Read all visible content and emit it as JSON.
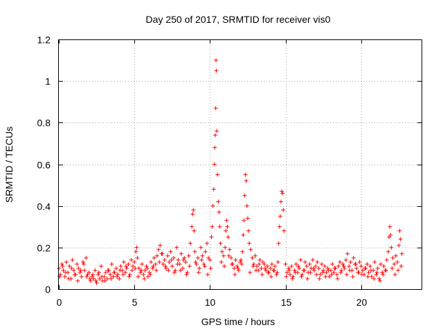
{
  "chart_data": {
    "type": "scatter",
    "title": "Day 250 of 2017, SRMTID for receiver vis0",
    "xlabel": "GPS time / hours",
    "ylabel": "SRMTID / TECUs",
    "xlim": [
      0,
      24
    ],
    "ylim": [
      0,
      1.2
    ],
    "xticks": [
      0,
      5,
      10,
      15,
      20
    ],
    "yticks": [
      0,
      0.2,
      0.4,
      0.6,
      0.8,
      1,
      1.2
    ],
    "xtick_labels": [
      "0",
      "5",
      "10",
      "15",
      "20"
    ],
    "ytick_labels": [
      "0",
      "0.2",
      "0.4",
      "0.6",
      "0.8",
      "1",
      "1.2"
    ],
    "grid": true,
    "marker": "+",
    "color": "#ff0000",
    "series": [
      {
        "name": "SRMTID vis0",
        "x": [
          0.0,
          0.1,
          0.2,
          0.3,
          0.4,
          0.5,
          0.6,
          0.7,
          0.8,
          0.9,
          1.0,
          1.1,
          1.2,
          1.3,
          1.4,
          1.5,
          1.6,
          1.7,
          1.8,
          1.9,
          2.0,
          2.1,
          2.2,
          2.3,
          2.4,
          2.5,
          2.6,
          2.7,
          2.8,
          2.9,
          3.0,
          3.1,
          3.2,
          3.3,
          3.4,
          3.5,
          3.6,
          3.7,
          3.8,
          3.9,
          4.0,
          4.1,
          4.2,
          4.3,
          4.4,
          4.5,
          4.6,
          4.7,
          4.8,
          4.9,
          5.0,
          5.1,
          5.15,
          5.2,
          5.3,
          5.4,
          5.5,
          5.6,
          5.7,
          5.8,
          5.9,
          6.0,
          6.1,
          6.2,
          6.3,
          6.4,
          6.5,
          6.6,
          6.7,
          6.8,
          6.9,
          7.0,
          7.1,
          7.2,
          7.3,
          7.4,
          7.5,
          7.6,
          7.7,
          7.8,
          7.9,
          8.0,
          8.1,
          8.2,
          8.3,
          8.4,
          8.5,
          8.6,
          8.7,
          8.8,
          8.85,
          8.9,
          8.95,
          9.0,
          9.1,
          9.2,
          9.3,
          9.4,
          9.5,
          9.6,
          9.7,
          9.8,
          9.9,
          10.0,
          10.1,
          10.15,
          10.2,
          10.25,
          10.3,
          10.32,
          10.35,
          10.38,
          10.4,
          10.42,
          10.45,
          10.5,
          10.55,
          10.6,
          10.65,
          10.7,
          10.8,
          10.9,
          11.0,
          11.05,
          11.1,
          11.15,
          11.2,
          11.3,
          11.4,
          11.5,
          11.6,
          11.7,
          11.8,
          11.9,
          12.0,
          12.1,
          12.15,
          12.2,
          12.25,
          12.3,
          12.35,
          12.4,
          12.45,
          12.5,
          12.55,
          12.6,
          12.7,
          12.8,
          12.9,
          13.0,
          13.1,
          13.2,
          13.3,
          13.4,
          13.5,
          13.6,
          13.7,
          13.8,
          13.9,
          14.0,
          14.1,
          14.2,
          14.3,
          14.4,
          14.5,
          14.55,
          14.6,
          14.65,
          14.7,
          14.75,
          14.8,
          14.85,
          14.9,
          15.0,
          15.1,
          15.2,
          15.3,
          15.4,
          15.5,
          15.6,
          15.7,
          15.8,
          15.9,
          16.0,
          16.1,
          16.2,
          16.3,
          16.4,
          16.5,
          16.6,
          16.7,
          16.8,
          16.9,
          17.0,
          17.1,
          17.2,
          17.3,
          17.4,
          17.5,
          17.6,
          17.7,
          17.8,
          17.9,
          18.0,
          18.1,
          18.2,
          18.3,
          18.4,
          18.5,
          18.6,
          18.7,
          18.8,
          18.9,
          19.0,
          19.1,
          19.2,
          19.3,
          19.4,
          19.5,
          19.6,
          19.7,
          19.8,
          19.9,
          20.0,
          20.1,
          20.2,
          20.3,
          20.4,
          20.5,
          20.6,
          20.7,
          20.8,
          20.9,
          21.0,
          21.1,
          21.2,
          21.3,
          21.4,
          21.5,
          21.6,
          21.7,
          21.8,
          21.85,
          21.9,
          21.95,
          22.0,
          22.1,
          22.2,
          22.3,
          22.4,
          22.5,
          22.55,
          22.6,
          22.7
        ],
        "y": [
          0.1,
          0.07,
          0.12,
          0.09,
          0.06,
          0.13,
          0.08,
          0.11,
          0.05,
          0.14,
          0.09,
          0.07,
          0.12,
          0.1,
          0.08,
          0.06,
          0.13,
          0.09,
          0.15,
          0.07,
          0.08,
          0.04,
          0.06,
          0.05,
          0.09,
          0.03,
          0.07,
          0.05,
          0.11,
          0.04,
          0.06,
          0.08,
          0.05,
          0.09,
          0.07,
          0.12,
          0.06,
          0.08,
          0.1,
          0.07,
          0.05,
          0.11,
          0.09,
          0.13,
          0.08,
          0.1,
          0.12,
          0.07,
          0.14,
          0.11,
          0.13,
          0.18,
          0.2,
          0.15,
          0.1,
          0.08,
          0.12,
          0.07,
          0.09,
          0.11,
          0.06,
          0.08,
          0.13,
          0.1,
          0.15,
          0.12,
          0.16,
          0.19,
          0.21,
          0.17,
          0.12,
          0.14,
          0.1,
          0.16,
          0.13,
          0.18,
          0.11,
          0.15,
          0.09,
          0.2,
          0.14,
          0.12,
          0.17,
          0.1,
          0.15,
          0.13,
          0.08,
          0.16,
          0.22,
          0.3,
          0.36,
          0.38,
          0.28,
          0.18,
          0.12,
          0.15,
          0.1,
          0.2,
          0.16,
          0.12,
          0.18,
          0.22,
          0.15,
          0.14,
          0.25,
          0.3,
          0.4,
          0.48,
          0.6,
          0.68,
          0.74,
          0.87,
          1.1,
          1.05,
          0.76,
          0.55,
          0.42,
          0.37,
          0.3,
          0.22,
          0.18,
          0.16,
          0.2,
          0.28,
          0.33,
          0.3,
          0.25,
          0.19,
          0.15,
          0.12,
          0.1,
          0.14,
          0.11,
          0.09,
          0.13,
          0.12,
          0.18,
          0.26,
          0.33,
          0.45,
          0.55,
          0.52,
          0.4,
          0.34,
          0.28,
          0.22,
          0.19,
          0.15,
          0.12,
          0.16,
          0.11,
          0.09,
          0.14,
          0.1,
          0.13,
          0.12,
          0.09,
          0.11,
          0.08,
          0.1,
          0.12,
          0.09,
          0.11,
          0.07,
          0.13,
          0.22,
          0.3,
          0.35,
          0.42,
          0.47,
          0.46,
          0.38,
          0.28,
          0.12,
          0.08,
          0.1,
          0.07,
          0.11,
          0.06,
          0.09,
          0.12,
          0.08,
          0.1,
          0.14,
          0.07,
          0.09,
          0.13,
          0.11,
          0.08,
          0.12,
          0.1,
          0.14,
          0.09,
          0.11,
          0.13,
          0.1,
          0.07,
          0.12,
          0.09,
          0.11,
          0.08,
          0.1,
          0.06,
          0.09,
          0.12,
          0.08,
          0.1,
          0.07,
          0.11,
          0.13,
          0.09,
          0.12,
          0.1,
          0.14,
          0.17,
          0.11,
          0.13,
          0.09,
          0.15,
          0.12,
          0.1,
          0.08,
          0.13,
          0.11,
          0.09,
          0.07,
          0.1,
          0.12,
          0.08,
          0.11,
          0.06,
          0.09,
          0.13,
          0.07,
          0.1,
          0.05,
          0.12,
          0.08,
          0.11,
          0.09,
          0.14,
          0.18,
          0.25,
          0.3,
          0.26,
          0.2,
          0.15,
          0.12,
          0.16,
          0.13,
          0.21,
          0.28,
          0.24,
          0.17
        ],
        "extra_x": [
          0.05,
          0.25,
          0.45,
          0.65,
          0.85,
          1.05,
          1.25,
          1.45,
          1.65,
          1.85,
          2.05,
          2.25,
          2.45,
          2.65,
          2.85,
          3.05,
          3.25,
          3.45,
          3.65,
          3.85,
          4.05,
          4.25,
          4.45,
          4.65,
          4.85,
          5.05,
          5.25,
          5.45,
          5.65,
          5.85,
          6.05,
          6.25,
          6.45,
          6.65,
          6.85,
          7.05,
          7.25,
          7.45,
          7.65,
          7.85,
          8.05,
          8.25,
          8.45,
          8.65,
          9.05,
          9.25,
          9.45,
          9.65,
          9.85,
          10.05,
          10.75,
          10.95,
          11.25,
          11.45,
          11.65,
          11.85,
          12.05,
          12.65,
          12.85,
          13.05,
          13.25,
          13.45,
          13.65,
          13.85,
          14.05,
          14.25,
          14.45,
          15.05,
          15.25,
          15.45,
          15.65,
          15.85,
          16.05,
          16.25,
          16.45,
          16.65,
          16.85,
          17.05,
          17.25,
          17.45,
          17.65,
          17.85,
          18.05,
          18.25,
          18.45,
          18.65,
          18.85,
          19.05,
          19.25,
          19.45,
          19.65,
          19.85,
          20.05,
          20.25,
          20.45,
          20.65,
          20.85,
          21.05,
          21.25,
          21.45,
          21.65,
          22.05,
          22.25,
          22.45,
          22.65
        ],
        "extra_y": [
          0.06,
          0.11,
          0.08,
          0.05,
          0.1,
          0.07,
          0.04,
          0.09,
          0.12,
          0.06,
          0.05,
          0.07,
          0.04,
          0.08,
          0.06,
          0.04,
          0.09,
          0.05,
          0.08,
          0.06,
          0.09,
          0.07,
          0.11,
          0.06,
          0.09,
          0.1,
          0.06,
          0.09,
          0.05,
          0.1,
          0.07,
          0.11,
          0.09,
          0.13,
          0.17,
          0.11,
          0.09,
          0.14,
          0.08,
          0.12,
          0.09,
          0.14,
          0.07,
          0.11,
          0.13,
          0.08,
          0.14,
          0.11,
          0.07,
          0.1,
          0.13,
          0.11,
          0.16,
          0.12,
          0.07,
          0.1,
          0.14,
          0.08,
          0.11,
          0.09,
          0.12,
          0.07,
          0.1,
          0.08,
          0.06,
          0.09,
          0.08,
          0.06,
          0.09,
          0.05,
          0.08,
          0.11,
          0.06,
          0.09,
          0.05,
          0.08,
          0.1,
          0.07,
          0.05,
          0.08,
          0.06,
          0.09,
          0.07,
          0.1,
          0.05,
          0.08,
          0.11,
          0.07,
          0.09,
          0.06,
          0.12,
          0.08,
          0.07,
          0.1,
          0.06,
          0.09,
          0.05,
          0.08,
          0.04,
          0.07,
          0.09,
          0.1,
          0.07,
          0.09,
          0.11
        ]
      }
    ]
  }
}
